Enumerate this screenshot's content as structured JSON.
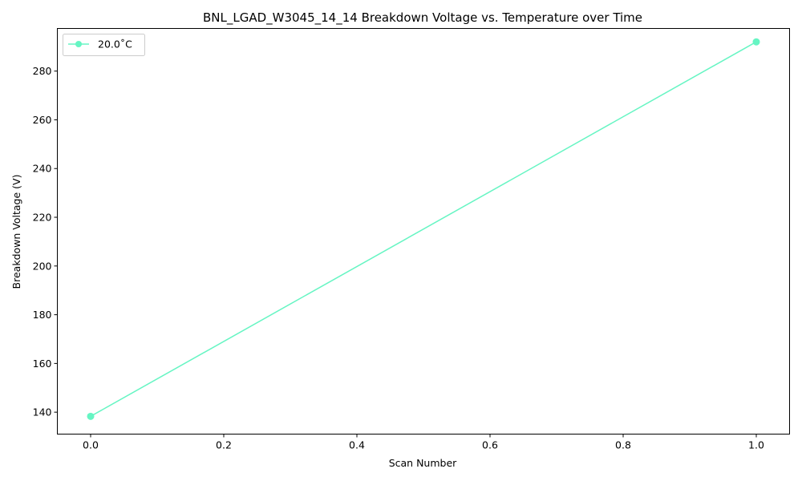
{
  "chart_data": {
    "type": "line",
    "title": "BNL_LGAD_W3045_14_14 Breakdown Voltage vs. Temperature over Time",
    "xlabel": "Scan Number",
    "ylabel": "Breakdown Voltage (V)",
    "xlim": [
      -0.05,
      1.05
    ],
    "ylim": [
      131,
      297.5
    ],
    "xticks": [
      0.0,
      0.2,
      0.4,
      0.6,
      0.8,
      1.0
    ],
    "xtick_labels": [
      "0.0",
      "0.2",
      "0.4",
      "0.6",
      "0.8",
      "1.0"
    ],
    "yticks": [
      140,
      160,
      180,
      200,
      220,
      240,
      260,
      280
    ],
    "ytick_labels": [
      "140",
      "160",
      "180",
      "200",
      "220",
      "240",
      "260",
      "280"
    ],
    "grid": false,
    "legend_position": "top-left",
    "series": [
      {
        "name": "20.0$^\\circ$C",
        "label": "20.0˚C",
        "color": "#66f5c3",
        "marker": "circle",
        "x": [
          0,
          1
        ],
        "y": [
          138.3,
          292.0
        ]
      }
    ]
  }
}
